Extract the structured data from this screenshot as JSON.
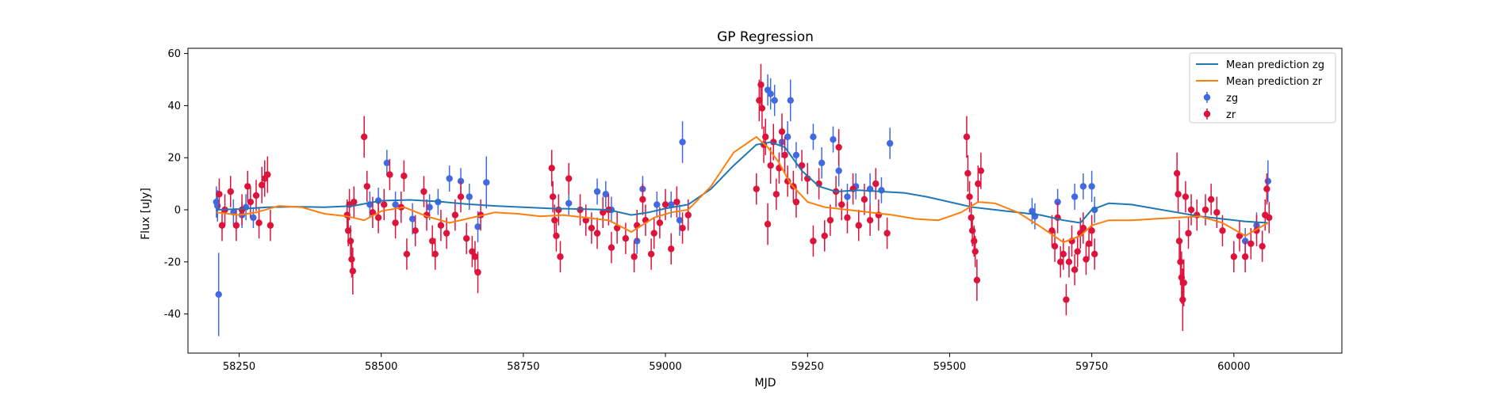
{
  "chart_data": {
    "type": "scatter",
    "title": "GP Regression",
    "xlabel": "MJD",
    "ylabel": "Flux [uJy]",
    "xlim": [
      58160,
      60190
    ],
    "ylim": [
      -55,
      62
    ],
    "xticks": [
      58250,
      58500,
      58750,
      59000,
      59250,
      59500,
      59750,
      60000
    ],
    "yticks": [
      -40,
      -20,
      0,
      20,
      40,
      60
    ],
    "grid": false,
    "legend_position": "top-right",
    "lines": [
      {
        "name": "Mean prediction zg",
        "color": "#1f77b4",
        "x": [
          58210,
          58250,
          58300,
          58350,
          58400,
          58450,
          58500,
          58550,
          58600,
          58650,
          58700,
          58750,
          58800,
          58850,
          58900,
          58940,
          58970,
          59000,
          59040,
          59080,
          59120,
          59160,
          59185,
          59210,
          59240,
          59270,
          59300,
          59340,
          59380,
          59420,
          59460,
          59500,
          59540,
          59580,
          59620,
          59660,
          59700,
          59730,
          59750,
          59780,
          59820,
          59860,
          59900,
          59940,
          59980,
          60020,
          60060
        ],
        "y": [
          0,
          0.3,
          1.0,
          1.2,
          1.0,
          1.5,
          3.5,
          3.8,
          3.2,
          2.2,
          1.5,
          1.0,
          0.5,
          0.3,
          0.0,
          -2.0,
          -1.0,
          0.5,
          2.0,
          8.0,
          17.0,
          25.0,
          26.0,
          24.0,
          15.0,
          9.0,
          7.0,
          7.5,
          7.0,
          6.5,
          5.0,
          3.0,
          1.0,
          0.0,
          -1.0,
          -2.0,
          -4.0,
          -5.0,
          0.0,
          2.5,
          2.0,
          0.5,
          -1.0,
          -2.5,
          -3.5,
          -4.5,
          -5.0
        ]
      },
      {
        "name": "Mean prediction zr",
        "color": "#ff7f0e",
        "x": [
          58210,
          58250,
          58280,
          58320,
          58360,
          58400,
          58440,
          58470,
          58500,
          58540,
          58580,
          58620,
          58660,
          58700,
          58740,
          58780,
          58820,
          58860,
          58900,
          58940,
          58980,
          59010,
          59040,
          59080,
          59120,
          59160,
          59180,
          59200,
          59220,
          59250,
          59280,
          59320,
          59360,
          59400,
          59440,
          59480,
          59520,
          59550,
          59580,
          59620,
          59660,
          59700,
          59730,
          59750,
          59780,
          59820,
          59860,
          59900,
          59940,
          59980,
          60020,
          60060
        ],
        "y": [
          -1,
          -2,
          -1,
          1.5,
          1.0,
          -1.5,
          -2.5,
          -4.0,
          -0.5,
          1.0,
          -2.5,
          -5.0,
          -3.0,
          -1.0,
          -1.5,
          -2.5,
          -2.0,
          -3.0,
          -4.0,
          -8.5,
          -3.0,
          -1.0,
          0.0,
          9.0,
          22.0,
          28.0,
          24.0,
          18.0,
          10.0,
          3.0,
          1.0,
          0.0,
          -1.0,
          -2.0,
          -3.5,
          -4.0,
          -1.0,
          3.0,
          2.5,
          -1.0,
          -6.5,
          -12.5,
          -10.0,
          -6.0,
          -4.0,
          -4.0,
          -3.5,
          -3.0,
          -2.5,
          -5.0,
          -10.0,
          -5.0
        ]
      }
    ],
    "series": [
      {
        "name": "zg",
        "color": "#4169e1",
        "points": [
          [
            58210,
            3,
            6
          ],
          [
            58212,
            1.5,
            6
          ],
          [
            58214,
            -32.5,
            16
          ],
          [
            58240,
            -1,
            5
          ],
          [
            58255,
            -2,
            5
          ],
          [
            58262,
            1,
            5
          ],
          [
            58275,
            -3,
            4
          ],
          [
            58480,
            2,
            5
          ],
          [
            58495,
            3.5,
            5
          ],
          [
            58510,
            18,
            5
          ],
          [
            58525,
            2,
            5
          ],
          [
            58555,
            -3.5,
            6
          ],
          [
            58585,
            1,
            5
          ],
          [
            58600,
            3,
            5
          ],
          [
            58620,
            12,
            5
          ],
          [
            58640,
            11,
            5
          ],
          [
            58655,
            5,
            5
          ],
          [
            58670,
            -6.5,
            6
          ],
          [
            58685,
            10.5,
            10
          ],
          [
            58830,
            2.5,
            5
          ],
          [
            58860,
            -4,
            5
          ],
          [
            58880,
            7,
            5
          ],
          [
            58895,
            6,
            5
          ],
          [
            58905,
            0,
            5
          ],
          [
            58950,
            -12,
            5
          ],
          [
            58960,
            8,
            5
          ],
          [
            58985,
            2,
            5
          ],
          [
            59010,
            2,
            5
          ],
          [
            59025,
            -4,
            6
          ],
          [
            59030,
            26,
            8
          ],
          [
            59180,
            46,
            6
          ],
          [
            59185,
            44.5,
            6
          ],
          [
            59192,
            42,
            6
          ],
          [
            59205,
            26,
            6
          ],
          [
            59215,
            28,
            6
          ],
          [
            59220,
            42,
            8
          ],
          [
            59230,
            21,
            5
          ],
          [
            59260,
            28,
            5
          ],
          [
            59275,
            18,
            6
          ],
          [
            59295,
            27,
            5
          ],
          [
            59305,
            15,
            6
          ],
          [
            59320,
            5,
            5
          ],
          [
            59335,
            9,
            5
          ],
          [
            59360,
            8,
            6
          ],
          [
            59380,
            7.5,
            5
          ],
          [
            59395,
            25.5,
            6
          ],
          [
            59645,
            -0.5,
            5
          ],
          [
            59650,
            -2.5,
            5
          ],
          [
            59690,
            3,
            5
          ],
          [
            59720,
            5,
            5
          ],
          [
            59735,
            9,
            5
          ],
          [
            59750,
            9,
            6
          ],
          [
            59755,
            0,
            5
          ],
          [
            60020,
            -12,
            5
          ],
          [
            60040,
            -6,
            5
          ],
          [
            60060,
            11,
            8
          ]
        ]
      },
      {
        "name": "zr",
        "color": "#dc143c",
        "points": [
          [
            58215,
            6,
            6
          ],
          [
            58220,
            -6,
            6
          ],
          [
            58225,
            0,
            6
          ],
          [
            58235,
            7,
            6
          ],
          [
            58245,
            -6,
            6
          ],
          [
            58255,
            0,
            6
          ],
          [
            58265,
            9,
            6
          ],
          [
            58270,
            3,
            6
          ],
          [
            58280,
            5.5,
            6
          ],
          [
            58285,
            -5,
            6
          ],
          [
            58290,
            9.5,
            7
          ],
          [
            58295,
            12,
            7
          ],
          [
            58300,
            13.5,
            7
          ],
          [
            58305,
            -6,
            6
          ],
          [
            58440,
            -2,
            6
          ],
          [
            58442,
            -8,
            6
          ],
          [
            58444,
            2,
            6
          ],
          [
            58446,
            -12,
            6
          ],
          [
            58448,
            -19,
            7
          ],
          [
            58450,
            -23.5,
            9
          ],
          [
            58452,
            3,
            6
          ],
          [
            58470,
            28,
            8
          ],
          [
            58475,
            9,
            6
          ],
          [
            58485,
            -1,
            6
          ],
          [
            58495,
            -3,
            6
          ],
          [
            58505,
            2,
            6
          ],
          [
            58515,
            13.5,
            6
          ],
          [
            58525,
            -5,
            6
          ],
          [
            58535,
            1,
            6
          ],
          [
            58540,
            13,
            6
          ],
          [
            58545,
            -17,
            6
          ],
          [
            58560,
            -8,
            6
          ],
          [
            58575,
            7,
            6
          ],
          [
            58580,
            -2,
            6
          ],
          [
            58590,
            -12,
            6
          ],
          [
            58595,
            -17,
            6
          ],
          [
            58605,
            -6,
            6
          ],
          [
            58615,
            -9,
            6
          ],
          [
            58630,
            -2,
            6
          ],
          [
            58640,
            5,
            6
          ],
          [
            58650,
            -11,
            6
          ],
          [
            58660,
            -16,
            6
          ],
          [
            58665,
            -18,
            6
          ],
          [
            58670,
            -24,
            8
          ],
          [
            58675,
            -2,
            6
          ],
          [
            58800,
            16,
            7
          ],
          [
            58802,
            5,
            6
          ],
          [
            58805,
            -4,
            6
          ],
          [
            58808,
            -10,
            6
          ],
          [
            58812,
            0,
            6
          ],
          [
            58815,
            -18,
            6
          ],
          [
            58830,
            12,
            6
          ],
          [
            58850,
            0,
            6
          ],
          [
            58860,
            -4,
            6
          ],
          [
            58870,
            -7,
            6
          ],
          [
            58880,
            -9,
            6
          ],
          [
            58890,
            -1,
            6
          ],
          [
            58900,
            0,
            6
          ],
          [
            58905,
            -14.5,
            6
          ],
          [
            58915,
            -7,
            6
          ],
          [
            58930,
            -11,
            6
          ],
          [
            58945,
            -18,
            6
          ],
          [
            58950,
            -6,
            6
          ],
          [
            58960,
            4,
            6
          ],
          [
            58965,
            -4,
            6
          ],
          [
            58975,
            -17,
            6
          ],
          [
            58980,
            -9,
            6
          ],
          [
            58990,
            -5,
            6
          ],
          [
            59000,
            2,
            6
          ],
          [
            59010,
            -15,
            6
          ],
          [
            59020,
            3,
            6
          ],
          [
            59030,
            -7,
            6
          ],
          [
            59040,
            -2,
            6
          ],
          [
            59160,
            8,
            6
          ],
          [
            59165,
            42,
            8
          ],
          [
            59168,
            48,
            8
          ],
          [
            59170,
            39,
            8
          ],
          [
            59173,
            25,
            7
          ],
          [
            59176,
            28,
            7
          ],
          [
            59180,
            -5.5,
            8
          ],
          [
            59185,
            17,
            7
          ],
          [
            59190,
            26,
            7
          ],
          [
            59195,
            6,
            6
          ],
          [
            59200,
            16,
            6
          ],
          [
            59205,
            30,
            7
          ],
          [
            59210,
            21,
            7
          ],
          [
            59215,
            11,
            6
          ],
          [
            59225,
            9,
            6
          ],
          [
            59230,
            3,
            6
          ],
          [
            59240,
            17,
            6
          ],
          [
            59250,
            12,
            6
          ],
          [
            59260,
            -12,
            6
          ],
          [
            59270,
            10,
            6
          ],
          [
            59280,
            -10,
            6
          ],
          [
            59290,
            -4,
            6
          ],
          [
            59300,
            7,
            6
          ],
          [
            59305,
            24,
            7
          ],
          [
            59310,
            2,
            6
          ],
          [
            59320,
            -3,
            6
          ],
          [
            59330,
            8,
            6
          ],
          [
            59340,
            -6,
            6
          ],
          [
            59350,
            4,
            6
          ],
          [
            59360,
            -4,
            6
          ],
          [
            59370,
            10,
            6
          ],
          [
            59375,
            -2,
            6
          ],
          [
            59390,
            -9,
            6
          ],
          [
            59530,
            28,
            8
          ],
          [
            59532,
            14,
            7
          ],
          [
            59535,
            5,
            6
          ],
          [
            59538,
            -3,
            6
          ],
          [
            59540,
            -8,
            6
          ],
          [
            59543,
            -12,
            6
          ],
          [
            59545,
            -16,
            6
          ],
          [
            59548,
            -27,
            8
          ],
          [
            59550,
            10,
            7
          ],
          [
            59555,
            15,
            7
          ],
          [
            59680,
            -8,
            6
          ],
          [
            59685,
            -14,
            6
          ],
          [
            59690,
            -3,
            6
          ],
          [
            59695,
            -20,
            6
          ],
          [
            59700,
            -17,
            6
          ],
          [
            59705,
            -34.5,
            6
          ],
          [
            59710,
            -20,
            6
          ],
          [
            59715,
            -12,
            6
          ],
          [
            59720,
            -23,
            6
          ],
          [
            59725,
            -16,
            6
          ],
          [
            59730,
            -9,
            6
          ],
          [
            59735,
            -7,
            6
          ],
          [
            59740,
            -19,
            6
          ],
          [
            59745,
            -13,
            6
          ],
          [
            59750,
            -8,
            6
          ],
          [
            59755,
            -17,
            6
          ],
          [
            59900,
            14,
            8
          ],
          [
            59902,
            6,
            7
          ],
          [
            59904,
            -12,
            8
          ],
          [
            59906,
            -20,
            9
          ],
          [
            59908,
            -26,
            10
          ],
          [
            59910,
            -34.5,
            12
          ],
          [
            59912,
            -28,
            9
          ],
          [
            59915,
            5,
            6
          ],
          [
            59920,
            -9,
            6
          ],
          [
            59925,
            0,
            6
          ],
          [
            59935,
            -2,
            6
          ],
          [
            59950,
            0,
            6
          ],
          [
            59960,
            4,
            6
          ],
          [
            59970,
            -1,
            6
          ],
          [
            59980,
            -8,
            6
          ],
          [
            60000,
            -18,
            6
          ],
          [
            60010,
            -10,
            6
          ],
          [
            60020,
            -18,
            6
          ],
          [
            60030,
            -13,
            6
          ],
          [
            60040,
            -8,
            6
          ],
          [
            60050,
            -14,
            6
          ],
          [
            60055,
            -2,
            6
          ],
          [
            60058,
            8,
            6
          ],
          [
            60062,
            -3,
            6
          ]
        ]
      }
    ]
  }
}
